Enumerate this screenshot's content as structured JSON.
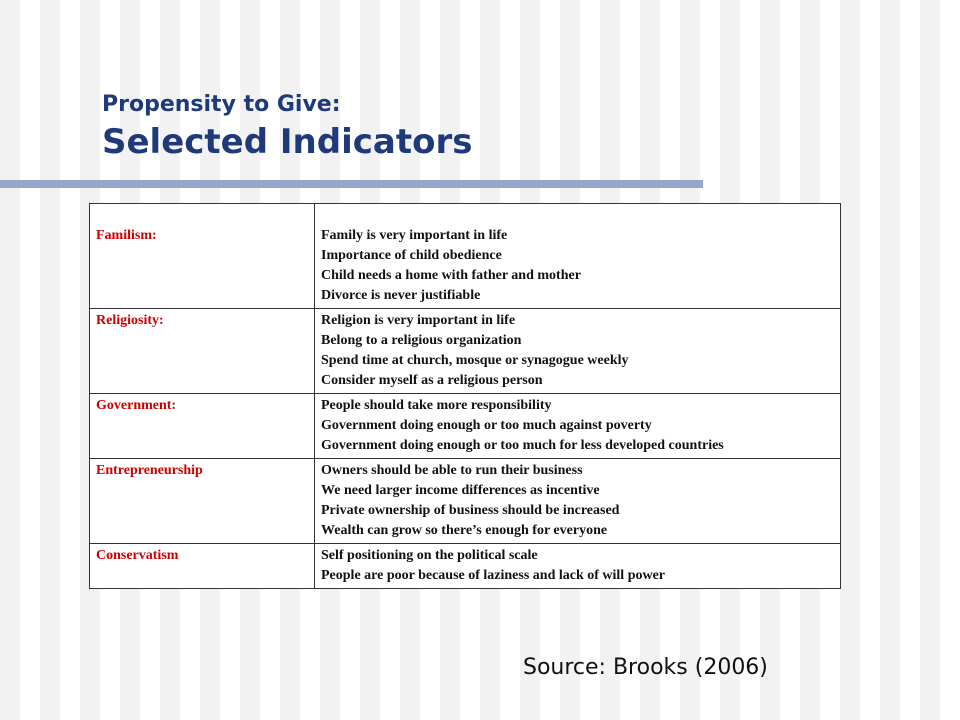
{
  "title": {
    "line1": "Propensity to Give:",
    "line2": "Selected Indicators"
  },
  "table": {
    "rows": [
      {
        "category": "Familism:",
        "items": [
          "Family is very important in life",
          "Importance of child obedience",
          "Child needs a home with father and mother",
          "Divorce is never justifiable"
        ]
      },
      {
        "category": "Religiosity:",
        "items": [
          "Religion is very important in life",
          "Belong to a religious organization",
          "Spend time at church, mosque or synagogue weekly",
          "Consider myself as a religious person"
        ]
      },
      {
        "category": "Government:",
        "items": [
          "People should take more responsibility",
          "Government doing enough or too much against poverty",
          "Government doing enough or too much for less developed countries"
        ]
      },
      {
        "category": "Entrepreneurship",
        "items": [
          "Owners should be able to run their business",
          "We need larger income differences as incentive",
          "Private ownership of business should be increased",
          "Wealth can grow so there’s enough for everyone"
        ]
      },
      {
        "category": "Conservatism",
        "items": [
          "Self positioning on the political scale",
          "People are poor because of laziness and lack of will power"
        ]
      }
    ]
  },
  "source": "Source: Brooks (2006)",
  "colors": {
    "title": "#1f3a7a",
    "category": "#cc0000",
    "rule": "#94a9c9"
  }
}
